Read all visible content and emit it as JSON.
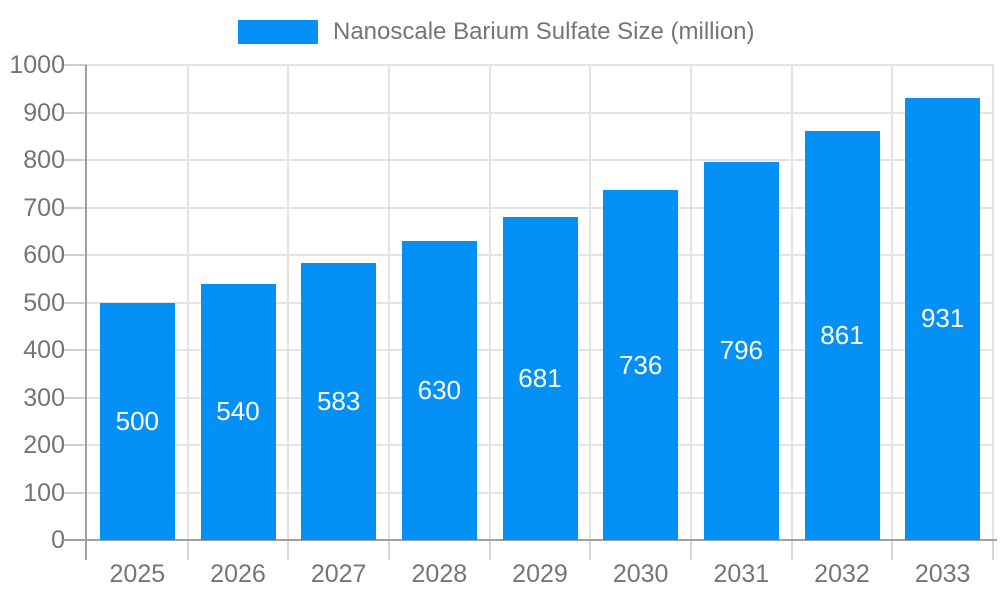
{
  "legend": {
    "label": "Nanoscale Barium Sulfate Size (million)"
  },
  "colors": {
    "bar": "#0490f5",
    "bar_label": "#ffffff",
    "axis_text": "#757575",
    "axis_line": "#a0a0a0",
    "grid_line": "#e3e3e3",
    "tick_line": "#cecece",
    "background": "#ffffff"
  },
  "chart_data": {
    "type": "bar",
    "title": "",
    "xlabel": "",
    "ylabel": "",
    "categories": [
      "2025",
      "2026",
      "2027",
      "2028",
      "2029",
      "2030",
      "2031",
      "2032",
      "2033"
    ],
    "series": [
      {
        "name": "Nanoscale Barium Sulfate Size (million)",
        "values": [
          500,
          540,
          583,
          630,
          681,
          736,
          796,
          861,
          931
        ]
      }
    ],
    "bar_labels": [
      "500",
      "540",
      "583",
      "630",
      "681",
      "736",
      "796",
      "861",
      "931"
    ],
    "ylim": [
      0,
      1000
    ],
    "ytick_step": 100,
    "yticks": [
      0,
      100,
      200,
      300,
      400,
      500,
      600,
      700,
      800,
      900,
      1000
    ],
    "grid": true,
    "legend_position": "top",
    "bar_label_position": "center-inside"
  }
}
